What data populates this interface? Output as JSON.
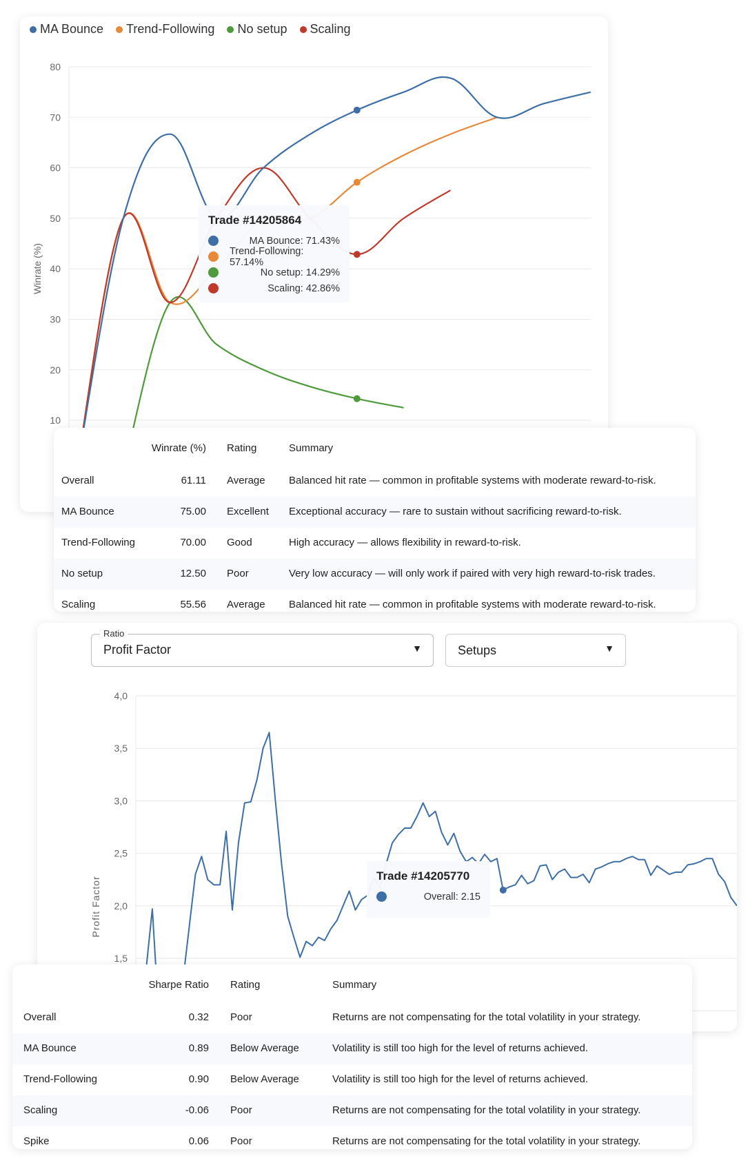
{
  "winrate_chart": {
    "legend": [
      {
        "name": "MA Bounce",
        "color": "#3d6fa6"
      },
      {
        "name": "Trend-Following",
        "color": "#e8893a"
      },
      {
        "name": "No setup",
        "color": "#4e9a3c"
      },
      {
        "name": "Scaling",
        "color": "#c0392b"
      }
    ],
    "tooltip": {
      "title": "Trade #14205864",
      "rows": [
        "MA Bounce: 71.43%",
        "Trend-Following: 57.14%",
        "No setup: 14.29%",
        "Scaling: 42.86%"
      ]
    }
  },
  "winrate_table": {
    "headers": [
      "",
      "Winrate (%)",
      "Rating",
      "Summary"
    ],
    "rows": [
      [
        "Overall",
        "61.11",
        "Average",
        "Balanced hit rate — common in profitable systems with moderate reward-to-risk."
      ],
      [
        "MA Bounce",
        "75.00",
        "Excellent",
        "Exceptional accuracy — rare to sustain without sacrificing reward-to-risk."
      ],
      [
        "Trend-Following",
        "70.00",
        "Good",
        "High accuracy — allows flexibility in reward-to-risk."
      ],
      [
        "No setup",
        "12.50",
        "Poor",
        "Very low accuracy — will only work if paired with very high reward-to-risk trades."
      ],
      [
        "Scaling",
        "55.56",
        "Average",
        "Balanced hit rate — common in profitable systems with moderate reward-to-risk."
      ]
    ]
  },
  "ratio_panel": {
    "ratio_label": "Ratio",
    "ratio_value": "Profit Factor",
    "group_value": "Setups",
    "caret": "▼",
    "tooltip": {
      "title": "Trade #14205770",
      "row": "Overall: 2.15",
      "color": "#3d6fa6"
    }
  },
  "sharpe_table": {
    "headers": [
      "",
      "Sharpe Ratio",
      "Rating",
      "Summary"
    ],
    "rows": [
      [
        "Overall",
        "0.32",
        "Poor",
        "Returns are not compensating for the total volatility in your strategy."
      ],
      [
        "MA Bounce",
        "0.89",
        "Below Average",
        "Volatility is still too high for the level of returns achieved."
      ],
      [
        "Trend-Following",
        "0.90",
        "Below Average",
        "Volatility is still too high for the level of returns achieved."
      ],
      [
        "Scaling",
        "-0.06",
        "Poor",
        "Returns are not compensating for the total volatility in your strategy."
      ],
      [
        "Spike",
        "0.06",
        "Poor",
        "Returns are not compensating for the total volatility in your strategy."
      ]
    ]
  },
  "chart_data": [
    {
      "type": "line",
      "ylabel": "Winrate (%)",
      "ylim": [
        0,
        80
      ],
      "yticks": [
        "10",
        "20",
        "30",
        "40",
        "50",
        "60",
        "70",
        "80"
      ],
      "grid": true,
      "legend_position": "top-left",
      "highlight_index": 6,
      "series": [
        {
          "name": "MA Bounce",
          "color": "#3d6fa6",
          "values": [
            0,
            50,
            66.67,
            50,
            60,
            66.67,
            71.43,
            75,
            77.78,
            70,
            72.73,
            75
          ]
        },
        {
          "name": "Trend-Following",
          "color": "#e8893a",
          "values": [
            0,
            50,
            33.33,
            40,
            50,
            50,
            57.14,
            62.5,
            66.67,
            70
          ]
        },
        {
          "name": "No setup",
          "color": "#4e9a3c",
          "values": [
            null,
            0,
            33.33,
            25,
            20,
            16.67,
            14.29,
            12.5
          ]
        },
        {
          "name": "Scaling",
          "color": "#c0392b",
          "values": [
            0,
            50,
            33.33,
            50,
            60,
            50,
            42.86,
            50,
            55.56
          ]
        }
      ]
    },
    {
      "type": "line",
      "ylabel": "Profit Factor",
      "ylim": [
        1.0,
        4.0
      ],
      "yticks": [
        "1,5",
        "2,0",
        "2,5",
        "3,0",
        "3,5",
        "4,0"
      ],
      "grid": true,
      "highlight_value": 2.15,
      "series": [
        {
          "name": "Overall",
          "color": "#3d6fa6",
          "values": [
            1.4,
            1.97,
            1.0,
            1.0,
            1.1,
            1.2,
            1.3,
            1.8,
            2.3,
            2.47,
            2.25,
            2.2,
            2.2,
            2.71,
            1.96,
            2.6,
            2.98,
            2.99,
            3.2,
            3.5,
            3.65,
            3.0,
            2.4,
            1.9,
            1.7,
            1.51,
            1.66,
            1.62,
            1.7,
            1.67,
            1.78,
            1.86,
            2.0,
            2.14,
            1.96,
            2.06,
            2.1,
            2.27,
            2.17,
            2.4,
            2.6,
            2.68,
            2.74,
            2.74,
            2.85,
            2.98,
            2.85,
            2.9,
            2.7,
            2.58,
            2.69,
            2.52,
            2.42,
            2.46,
            2.4,
            2.49,
            2.42,
            2.45,
            2.15,
            2.18,
            2.2,
            2.29,
            2.21,
            2.24,
            2.38,
            2.39,
            2.25,
            2.32,
            2.35,
            2.27,
            2.27,
            2.3,
            2.22,
            2.35,
            2.37,
            2.4,
            2.42,
            2.42,
            2.45,
            2.47,
            2.44,
            2.44,
            2.29,
            2.38,
            2.34,
            2.3,
            2.32,
            2.32,
            2.39,
            2.4,
            2.42,
            2.45,
            2.45,
            2.3,
            2.23,
            2.08,
            2.0
          ]
        }
      ]
    }
  ]
}
